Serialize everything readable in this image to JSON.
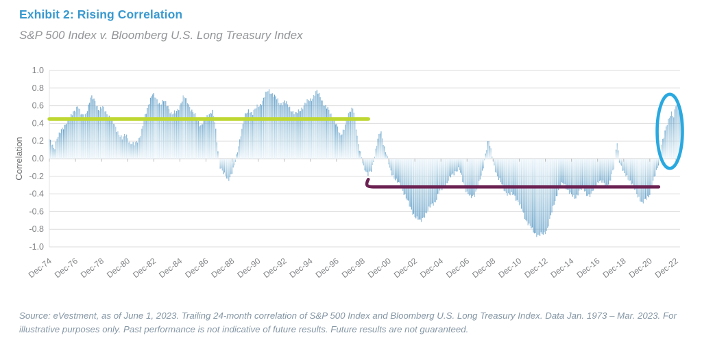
{
  "header": {
    "title": "Exhibit 2: Rising Correlation",
    "subtitle": "S&P 500 Index v. Bloomberg U.S. Long Treasury Index"
  },
  "footer": {
    "source": "Source: eVestment, as of June 1, 2023. Trailing 24-month correlation of S&P 500 Index and Bloomberg U.S. Long Treasury Index. Data Jan. 1973 – Mar. 2023. For illustrative purposes only. Past performance is not indicative of future results. Future results are not guaranteed."
  },
  "colors": {
    "title": "#3999cf",
    "subtitle": "#939598",
    "source": "#8496a4",
    "axis_text": "#808285",
    "gridline": "#dbdbdb",
    "zero_line": "#cfcfcf",
    "tick_mark": "#bdbdbd",
    "bar_tip": "#5c9bc6",
    "bar_mid": "#a5cade",
    "bar_base": "#eaf4fb",
    "avg_line_early": "#bfd732",
    "avg_line_late": "#6b2151",
    "highlight_circle": "#2aa9e0"
  },
  "chart_data": {
    "type": "bar",
    "title": "Exhibit 2: Rising Correlation",
    "subtitle": "S&P 500 Index v. Bloomberg U.S. Long Treasury Index",
    "xlabel": "",
    "ylabel": "Correlation",
    "ylim": [
      -1.0,
      1.0
    ],
    "y_ticks": [
      1.0,
      0.8,
      0.6,
      0.4,
      0.2,
      0.0,
      -0.2,
      -0.4,
      -0.6,
      -0.8,
      -1.0
    ],
    "grid": true,
    "legend": false,
    "x_start_year": 1974.9167,
    "x_end_year": 2023.25,
    "x_tick_step_years": 2,
    "x_tick_labels": [
      "Dec-74",
      "Dec-76",
      "Dec-78",
      "Dec-80",
      "Dec-82",
      "Dec-84",
      "Dec-86",
      "Dec-88",
      "Dec-90",
      "Dec-92",
      "Dec-94",
      "Dec-96",
      "Dec-98",
      "Dec-00",
      "Dec-02",
      "Dec-04",
      "Dec-06",
      "Dec-08",
      "Dec-10",
      "Dec-12",
      "Dec-14",
      "Dec-16",
      "Dec-18",
      "Dec-20",
      "Dec-22"
    ],
    "series": [
      {
        "name": "Trailing 24-month correlation of S&P 500 Index and Bloomberg U.S. Long Treasury Index",
        "sampling": "monthly values interpolated from keypoints [decimal_year, correlation]",
        "keypoints": [
          [
            1974.92,
            0.22
          ],
          [
            1975.1,
            0.15
          ],
          [
            1975.3,
            0.1
          ],
          [
            1975.5,
            0.25
          ],
          [
            1975.75,
            0.3
          ],
          [
            1976.0,
            0.34
          ],
          [
            1976.3,
            0.44
          ],
          [
            1976.6,
            0.48
          ],
          [
            1976.9,
            0.55
          ],
          [
            1977.1,
            0.62
          ],
          [
            1977.35,
            0.5
          ],
          [
            1977.6,
            0.46
          ],
          [
            1977.9,
            0.6
          ],
          [
            1978.1,
            0.7
          ],
          [
            1978.4,
            0.65
          ],
          [
            1978.7,
            0.56
          ],
          [
            1979.0,
            0.58
          ],
          [
            1979.3,
            0.52
          ],
          [
            1979.6,
            0.46
          ],
          [
            1979.9,
            0.38
          ],
          [
            1980.2,
            0.3
          ],
          [
            1980.5,
            0.22
          ],
          [
            1980.8,
            0.28
          ],
          [
            1981.1,
            0.18
          ],
          [
            1981.4,
            0.15
          ],
          [
            1981.7,
            0.22
          ],
          [
            1981.95,
            0.28
          ],
          [
            1982.2,
            0.45
          ],
          [
            1982.5,
            0.62
          ],
          [
            1982.8,
            0.73
          ],
          [
            1983.1,
            0.68
          ],
          [
            1983.4,
            0.62
          ],
          [
            1983.7,
            0.65
          ],
          [
            1984.0,
            0.6
          ],
          [
            1984.3,
            0.5
          ],
          [
            1984.6,
            0.52
          ],
          [
            1984.9,
            0.6
          ],
          [
            1985.2,
            0.7
          ],
          [
            1985.5,
            0.65
          ],
          [
            1985.8,
            0.55
          ],
          [
            1986.1,
            0.48
          ],
          [
            1986.5,
            0.38
          ],
          [
            1986.8,
            0.42
          ],
          [
            1987.1,
            0.5
          ],
          [
            1987.4,
            0.55
          ],
          [
            1987.6,
            0.4
          ],
          [
            1987.8,
            0.12
          ],
          [
            1988.0,
            -0.08
          ],
          [
            1988.3,
            -0.18
          ],
          [
            1988.6,
            -0.25
          ],
          [
            1988.9,
            -0.15
          ],
          [
            1989.1,
            -0.08
          ],
          [
            1989.3,
            0.05
          ],
          [
            1989.6,
            0.3
          ],
          [
            1989.9,
            0.48
          ],
          [
            1990.2,
            0.55
          ],
          [
            1990.5,
            0.52
          ],
          [
            1990.8,
            0.58
          ],
          [
            1991.1,
            0.62
          ],
          [
            1991.4,
            0.7
          ],
          [
            1991.7,
            0.78
          ],
          [
            1992.0,
            0.74
          ],
          [
            1992.3,
            0.68
          ],
          [
            1992.6,
            0.62
          ],
          [
            1992.9,
            0.65
          ],
          [
            1993.2,
            0.6
          ],
          [
            1993.5,
            0.55
          ],
          [
            1993.8,
            0.5
          ],
          [
            1994.1,
            0.55
          ],
          [
            1994.4,
            0.6
          ],
          [
            1994.7,
            0.65
          ],
          [
            1995.0,
            0.68
          ],
          [
            1995.4,
            0.76
          ],
          [
            1995.7,
            0.7
          ],
          [
            1996.0,
            0.6
          ],
          [
            1996.3,
            0.55
          ],
          [
            1996.6,
            0.48
          ],
          [
            1996.9,
            0.38
          ],
          [
            1997.2,
            0.26
          ],
          [
            1997.5,
            0.35
          ],
          [
            1997.8,
            0.48
          ],
          [
            1998.0,
            0.55
          ],
          [
            1998.2,
            0.6
          ],
          [
            1998.45,
            0.3
          ],
          [
            1998.6,
            0.12
          ],
          [
            1998.8,
            0.05
          ],
          [
            1999.0,
            -0.08
          ],
          [
            1999.3,
            -0.2
          ],
          [
            1999.6,
            -0.12
          ],
          [
            1999.85,
            0.05
          ],
          [
            2000.1,
            0.22
          ],
          [
            2000.3,
            0.32
          ],
          [
            2000.55,
            0.15
          ],
          [
            2000.8,
            0.02
          ],
          [
            2001.0,
            -0.12
          ],
          [
            2001.3,
            -0.2
          ],
          [
            2001.6,
            -0.27
          ],
          [
            2001.9,
            -0.32
          ],
          [
            2002.2,
            -0.42
          ],
          [
            2002.5,
            -0.54
          ],
          [
            2002.8,
            -0.62
          ],
          [
            2003.1,
            -0.68
          ],
          [
            2003.35,
            -0.72
          ],
          [
            2003.6,
            -0.65
          ],
          [
            2003.9,
            -0.6
          ],
          [
            2004.2,
            -0.52
          ],
          [
            2004.5,
            -0.48
          ],
          [
            2004.8,
            -0.38
          ],
          [
            2005.1,
            -0.32
          ],
          [
            2005.4,
            -0.28
          ],
          [
            2005.7,
            -0.2
          ],
          [
            2006.0,
            -0.14
          ],
          [
            2006.3,
            -0.12
          ],
          [
            2006.6,
            -0.25
          ],
          [
            2006.9,
            -0.38
          ],
          [
            2007.2,
            -0.45
          ],
          [
            2007.5,
            -0.4
          ],
          [
            2007.8,
            -0.3
          ],
          [
            2008.1,
            -0.15
          ],
          [
            2008.35,
            0.08
          ],
          [
            2008.55,
            0.22
          ],
          [
            2008.8,
            0.05
          ],
          [
            2009.0,
            -0.08
          ],
          [
            2009.3,
            -0.22
          ],
          [
            2009.6,
            -0.3
          ],
          [
            2009.9,
            -0.38
          ],
          [
            2010.2,
            -0.42
          ],
          [
            2010.5,
            -0.4
          ],
          [
            2010.8,
            -0.48
          ],
          [
            2011.1,
            -0.58
          ],
          [
            2011.4,
            -0.68
          ],
          [
            2011.7,
            -0.76
          ],
          [
            2012.0,
            -0.83
          ],
          [
            2012.4,
            -0.87
          ],
          [
            2012.8,
            -0.86
          ],
          [
            2013.1,
            -0.78
          ],
          [
            2013.4,
            -0.62
          ],
          [
            2013.7,
            -0.45
          ],
          [
            2014.0,
            -0.32
          ],
          [
            2014.3,
            -0.28
          ],
          [
            2014.6,
            -0.34
          ],
          [
            2014.9,
            -0.42
          ],
          [
            2015.2,
            -0.45
          ],
          [
            2015.5,
            -0.36
          ],
          [
            2015.8,
            -0.34
          ],
          [
            2016.1,
            -0.4
          ],
          [
            2016.4,
            -0.42
          ],
          [
            2016.7,
            -0.32
          ],
          [
            2017.0,
            -0.25
          ],
          [
            2017.3,
            -0.27
          ],
          [
            2017.6,
            -0.31
          ],
          [
            2017.9,
            -0.24
          ],
          [
            2018.2,
            -0.1
          ],
          [
            2018.4,
            0.22
          ],
          [
            2018.6,
            -0.04
          ],
          [
            2018.9,
            -0.16
          ],
          [
            2019.2,
            -0.2
          ],
          [
            2019.5,
            -0.28
          ],
          [
            2019.8,
            -0.36
          ],
          [
            2020.1,
            -0.44
          ],
          [
            2020.35,
            -0.52
          ],
          [
            2020.6,
            -0.46
          ],
          [
            2020.9,
            -0.4
          ],
          [
            2021.1,
            -0.3
          ],
          [
            2021.35,
            -0.18
          ],
          [
            2021.6,
            -0.04
          ],
          [
            2021.8,
            0.14
          ],
          [
            2022.0,
            0.24
          ],
          [
            2022.2,
            0.38
          ],
          [
            2022.4,
            0.48
          ],
          [
            2022.6,
            0.52
          ],
          [
            2022.75,
            0.45
          ],
          [
            2022.9,
            0.6
          ],
          [
            2023.05,
            0.65
          ],
          [
            2023.25,
            0.52
          ]
        ]
      }
    ],
    "annotations": {
      "avg_line_early": {
        "meaning": "average correlation level of early regime",
        "value": 0.45,
        "start_year": 1974.92,
        "end_year": 1999.35,
        "color": "#bfd732"
      },
      "avg_line_late": {
        "meaning": "average correlation level of late regime",
        "value": -0.32,
        "start_year": 1999.35,
        "end_year": 2021.6,
        "color": "#6b2151"
      },
      "highlight_ellipse": {
        "meaning": "circle highlighting rising correlation at end of series (2022 – Mar 2023)",
        "center_year": 2022.45,
        "center_value": 0.31,
        "radius_years": 0.97,
        "radius_value": 0.42,
        "color": "#2aa9e0"
      }
    }
  }
}
